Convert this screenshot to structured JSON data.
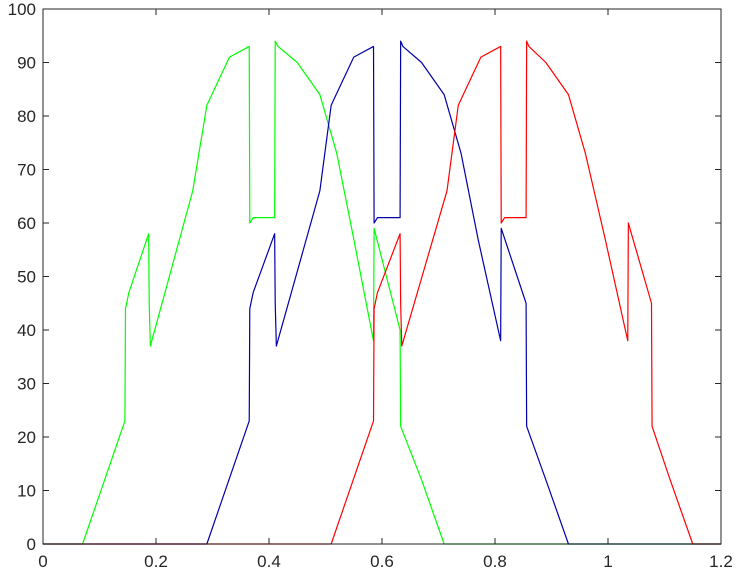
{
  "chart_data": {
    "type": "line",
    "title": "",
    "xlabel": "",
    "ylabel": "",
    "xlim": [
      0,
      1.2
    ],
    "ylim": [
      0,
      100
    ],
    "xticks": [
      0,
      0.2,
      0.4,
      0.6,
      0.8,
      1,
      1.2
    ],
    "xtick_labels": [
      "0",
      "0.2",
      "0.4",
      "0.6",
      "0.8",
      "1",
      "1.2"
    ],
    "yticks": [
      0,
      10,
      20,
      30,
      40,
      50,
      60,
      70,
      80,
      90,
      100
    ],
    "ytick_labels": [
      "0",
      "10",
      "20",
      "30",
      "40",
      "50",
      "60",
      "70",
      "80",
      "90",
      "100"
    ],
    "grid": false,
    "legend": "none",
    "series": [
      {
        "color": "#00ff00",
        "x": [
          0.0,
          0.07,
          0.145,
          0.146,
          0.152,
          0.187,
          0.188,
          0.19,
          0.265,
          0.29,
          0.33,
          0.365,
          0.366,
          0.372,
          0.41,
          0.411,
          0.416,
          0.45,
          0.49,
          0.52,
          0.55,
          0.585,
          0.586,
          0.632,
          0.633,
          0.67,
          0.71,
          1.2
        ],
        "y": [
          0,
          0,
          23,
          44,
          47,
          58,
          45,
          37,
          66,
          82,
          91,
          93,
          60,
          61,
          61,
          94,
          93,
          90,
          84,
          73,
          57,
          38,
          59,
          40,
          22,
          12,
          0,
          0
        ]
      },
      {
        "color": "#0000aa",
        "x": [
          0.0,
          0.29,
          0.365,
          0.366,
          0.372,
          0.41,
          0.411,
          0.413,
          0.49,
          0.51,
          0.55,
          0.585,
          0.586,
          0.592,
          0.632,
          0.633,
          0.637,
          0.67,
          0.71,
          0.74,
          0.77,
          0.81,
          0.811,
          0.855,
          0.856,
          0.89,
          0.93,
          1.2
        ],
        "y": [
          0,
          0,
          23,
          44,
          47,
          58,
          45,
          37,
          66,
          82,
          91,
          93,
          60,
          61,
          61,
          94,
          93,
          90,
          84,
          73,
          57,
          38,
          59,
          45,
          22,
          12,
          0,
          0
        ]
      },
      {
        "color": "#ff0000",
        "x": [
          0.0,
          0.51,
          0.585,
          0.586,
          0.592,
          0.632,
          0.633,
          0.635,
          0.715,
          0.735,
          0.775,
          0.81,
          0.811,
          0.817,
          0.855,
          0.856,
          0.86,
          0.89,
          0.93,
          0.96,
          0.995,
          1.035,
          1.036,
          1.077,
          1.078,
          1.11,
          1.15,
          1.2
        ],
        "y": [
          0,
          0,
          23,
          44,
          47,
          58,
          45,
          37,
          66,
          82,
          91,
          93,
          60,
          61,
          61,
          94,
          93,
          90,
          84,
          73,
          57,
          38,
          60,
          45,
          22,
          12,
          0,
          0
        ]
      }
    ]
  }
}
